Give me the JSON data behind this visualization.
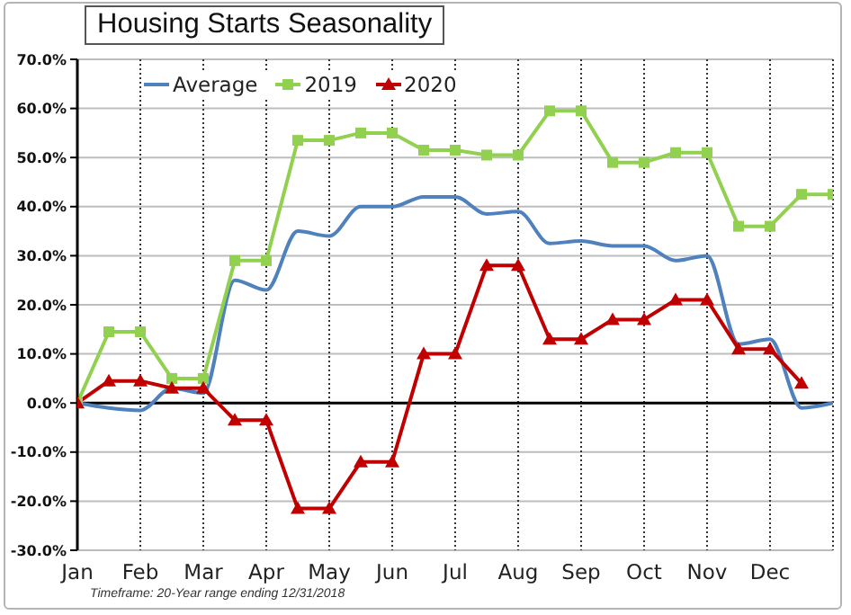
{
  "chart_data": {
    "type": "line",
    "title": "Housing Starts Seasonality",
    "annotations": [
      "Timeframe: 20-Year range ending 12/31/2018"
    ],
    "categories": [
      "Jan",
      null,
      "Feb",
      null,
      "Mar",
      null,
      "Apr",
      null,
      "May",
      null,
      "Jun",
      null,
      "Jul",
      null,
      "Aug",
      null,
      "Sep",
      null,
      "Oct",
      null,
      "Nov",
      null,
      "Dec",
      null,
      null
    ],
    "series": [
      {
        "name": "Average",
        "color": "#4f81bd",
        "marker": "none",
        "values": [
          0,
          -1,
          -1.5,
          3,
          2,
          25,
          23,
          35,
          34,
          40,
          40,
          42,
          42,
          38.5,
          39,
          32.5,
          33,
          32,
          32,
          29,
          30,
          12,
          13,
          -1,
          0
        ]
      },
      {
        "name": "2019",
        "color": "#92d050",
        "marker": "square",
        "values": [
          0,
          14.5,
          14.5,
          5,
          5,
          29,
          29,
          53.5,
          53.5,
          55,
          55,
          51.5,
          51.5,
          50.5,
          50.5,
          59.5,
          59.5,
          49,
          49,
          51,
          51,
          36,
          36,
          42.5,
          42.5
        ]
      },
      {
        "name": "2020",
        "color": "#c00000",
        "marker": "triangle",
        "values": [
          0,
          4.5,
          4.5,
          3,
          3,
          -3.5,
          -3.5,
          -21.5,
          -21.5,
          -12,
          -12,
          10,
          10,
          28,
          28,
          13,
          13,
          17,
          17,
          21,
          21,
          11,
          11,
          4,
          null
        ]
      }
    ],
    "ylim": [
      -30,
      70
    ],
    "yticks": [
      {
        "value": -30,
        "label": "-30.0%"
      },
      {
        "value": -20,
        "label": "-20.0%"
      },
      {
        "value": -10,
        "label": "-10.0%"
      },
      {
        "value": 0,
        "label": "0.0%"
      },
      {
        "value": 10,
        "label": "10.0%"
      },
      {
        "value": 20,
        "label": "20.0%"
      },
      {
        "value": 30,
        "label": "30.0%"
      },
      {
        "value": 40,
        "label": "40.0%"
      },
      {
        "value": 50,
        "label": "50.0%"
      },
      {
        "value": 60,
        "label": "60.0%"
      },
      {
        "value": 70,
        "label": "70.0%"
      }
    ],
    "grid": true,
    "legend": "top left"
  }
}
